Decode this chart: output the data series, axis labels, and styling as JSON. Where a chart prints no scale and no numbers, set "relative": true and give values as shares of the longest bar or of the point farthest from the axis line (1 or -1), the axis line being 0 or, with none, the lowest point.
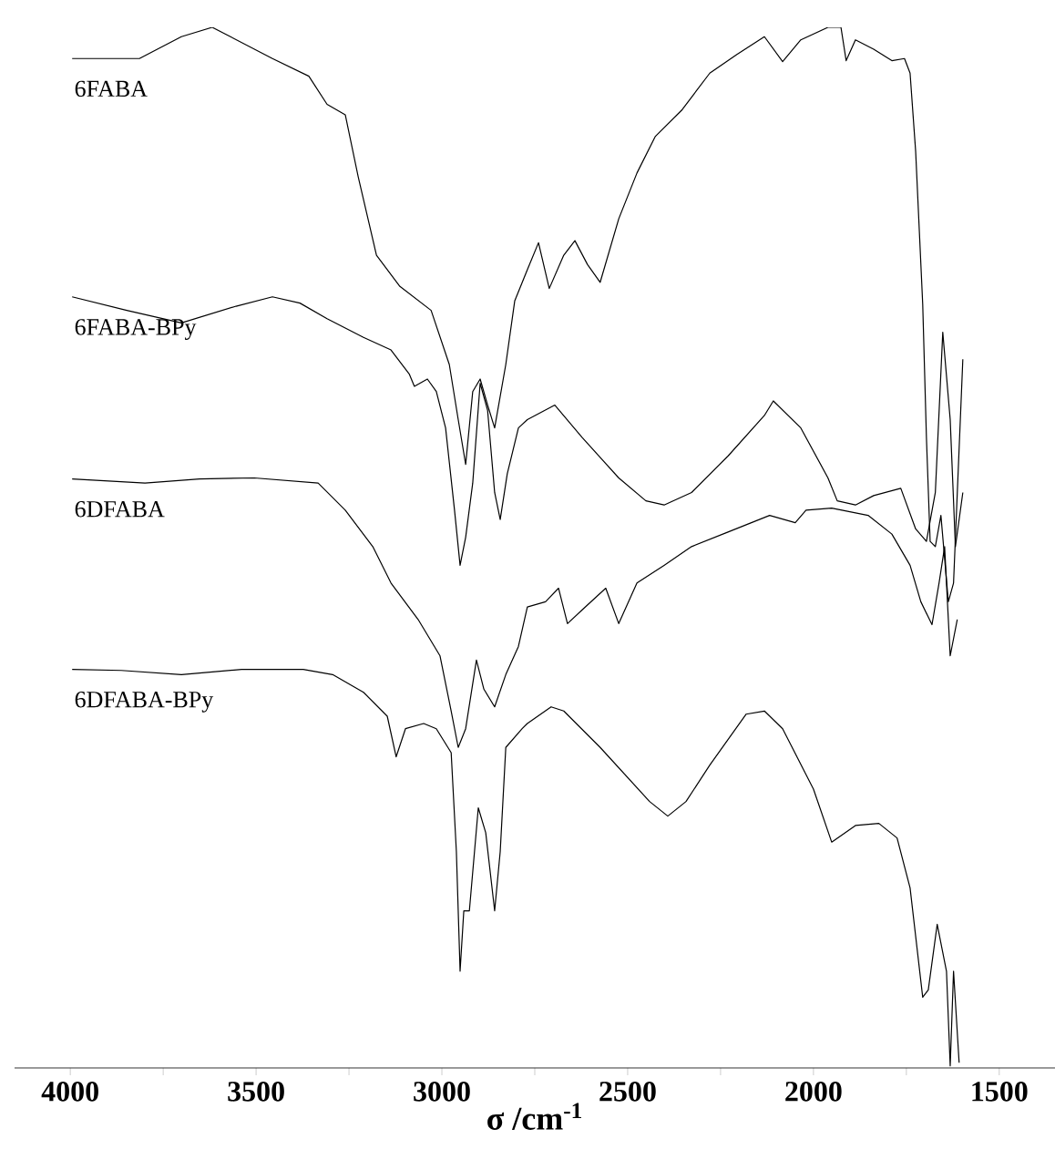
{
  "chart_data": {
    "type": "line",
    "relative": true,
    "xlabel": "σ /cm$^{-1}$",
    "xlim": [
      4150,
      1350
    ],
    "xticks": [
      4000,
      {
        "value": 3750,
        "label": null
      },
      3500,
      {
        "value": 3250,
        "label": null
      },
      3000,
      {
        "value": 2750,
        "label": null
      },
      2500,
      {
        "value": 2250,
        "label": null
      },
      2000,
      {
        "value": 1750,
        "label": null
      },
      1500
    ],
    "grid": false,
    "legend": false,
    "marker": "none",
    "line_style": "solid",
    "series": [
      {
        "name": "6FABA",
        "color": "#000000",
        "x": [
          3995,
          3814,
          3701,
          3618,
          3569,
          3456,
          3358,
          3309,
          3260,
          3225,
          3176,
          3113,
          3029,
          2980,
          2956,
          2936,
          2917,
          2897,
          2877,
          2858,
          2828,
          2804,
          2770,
          2740,
          2711,
          2672,
          2642,
          2608,
          2574,
          2524,
          2475,
          2426,
          2353,
          2279,
          2206,
          2132,
          2083,
          2034,
          1961,
          1926,
          1912,
          1887,
          1838,
          1789,
          1755,
          1740,
          1725,
          1706,
          1696,
          1686,
          1672,
          1657,
          1637,
          1623,
          1598
        ],
        "values": [
          0.97,
          0.97,
          0.991,
          1,
          0.991,
          0.97,
          0.953,
          0.926,
          0.916,
          0.856,
          0.781,
          0.751,
          0.728,
          0.676,
          0.623,
          0.58,
          0.65,
          0.662,
          0.637,
          0.615,
          0.676,
          0.737,
          0.767,
          0.793,
          0.749,
          0.781,
          0.795,
          0.772,
          0.755,
          0.816,
          0.86,
          0.895,
          0.921,
          0.956,
          0.974,
          0.991,
          0.967,
          0.988,
          1,
          1,
          0.968,
          0.988,
          0.979,
          0.968,
          0.97,
          0.956,
          0.881,
          0.734,
          0.606,
          0.506,
          0.501,
          0.531,
          0.448,
          0.466,
          0.681
        ]
      },
      {
        "name": "6FABA-BPy",
        "color": "#000000",
        "x": [
          3995,
          3848,
          3701,
          3554,
          3456,
          3382,
          3309,
          3211,
          3137,
          3088,
          3074,
          3039,
          3015,
          2990,
          2966,
          2951,
          2936,
          2917,
          2897,
          2877,
          2858,
          2843,
          2824,
          2794,
          2770,
          2696,
          2623,
          2524,
          2451,
          2402,
          2328,
          2230,
          2132,
          2108,
          2034,
          1961,
          1936,
          1887,
          1838,
          1765,
          1725,
          1696,
          1672,
          1652,
          1632,
          1618,
          1598
        ],
        "values": [
          0.741,
          0.728,
          0.716,
          0.732,
          0.741,
          0.735,
          0.72,
          0.702,
          0.69,
          0.667,
          0.655,
          0.662,
          0.65,
          0.615,
          0.536,
          0.483,
          0.51,
          0.562,
          0.658,
          0.632,
          0.553,
          0.527,
          0.571,
          0.615,
          0.623,
          0.637,
          0.606,
          0.567,
          0.545,
          0.541,
          0.553,
          0.588,
          0.627,
          0.641,
          0.615,
          0.567,
          0.545,
          0.541,
          0.55,
          0.557,
          0.518,
          0.506,
          0.553,
          0.707,
          0.623,
          0.501,
          0.553
        ]
      },
      {
        "name": "6DFABA",
        "color": "#000000",
        "x": [
          3995,
          3799,
          3652,
          3505,
          3333,
          3260,
          3186,
          3137,
          3064,
          3005,
          2975,
          2956,
          2936,
          2907,
          2887,
          2858,
          2828,
          2794,
          2770,
          2721,
          2686,
          2662,
          2623,
          2559,
          2524,
          2475,
          2402,
          2328,
          2230,
          2118,
          2049,
          2020,
          1951,
          1853,
          1789,
          1740,
          1711,
          1681,
          1662,
          1647,
          1632,
          1613
        ],
        "values": [
          0.566,
          0.562,
          0.566,
          0.567,
          0.562,
          0.536,
          0.501,
          0.466,
          0.431,
          0.396,
          0.343,
          0.308,
          0.326,
          0.392,
          0.364,
          0.347,
          0.378,
          0.405,
          0.443,
          0.448,
          0.461,
          0.427,
          0.44,
          0.461,
          0.427,
          0.466,
          0.483,
          0.501,
          0.515,
          0.531,
          0.524,
          0.536,
          0.538,
          0.531,
          0.513,
          0.483,
          0.448,
          0.426,
          0.466,
          0.501,
          0.396,
          0.431
        ]
      },
      {
        "name": "6DFABA-BPy",
        "color": "#000000",
        "x": [
          3995,
          3863,
          3701,
          3539,
          3373,
          3294,
          3211,
          3147,
          3123,
          3098,
          3049,
          3015,
          2975,
          2961,
          2951,
          2941,
          2926,
          2902,
          2882,
          2858,
          2843,
          2828,
          2784,
          2770,
          2706,
          2672,
          2574,
          2441,
          2392,
          2343,
          2279,
          2181,
          2132,
          2083,
          2000,
          1951,
          1887,
          1824,
          1775,
          1740,
          1706,
          1691,
          1667,
          1642,
          1632,
          1623,
          1608
        ],
        "values": [
          0.383,
          0.382,
          0.378,
          0.383,
          0.383,
          0.378,
          0.361,
          0.338,
          0.299,
          0.326,
          0.331,
          0.326,
          0.303,
          0.208,
          0.093,
          0.151,
          0.151,
          0.25,
          0.226,
          0.151,
          0.208,
          0.308,
          0.326,
          0.331,
          0.347,
          0.343,
          0.308,
          0.256,
          0.242,
          0.256,
          0.291,
          0.34,
          0.343,
          0.326,
          0.268,
          0.217,
          0.233,
          0.235,
          0.221,
          0.173,
          0.068,
          0.075,
          0.138,
          0.093,
          0.002,
          0.093,
          0.005
        ]
      }
    ]
  }
}
